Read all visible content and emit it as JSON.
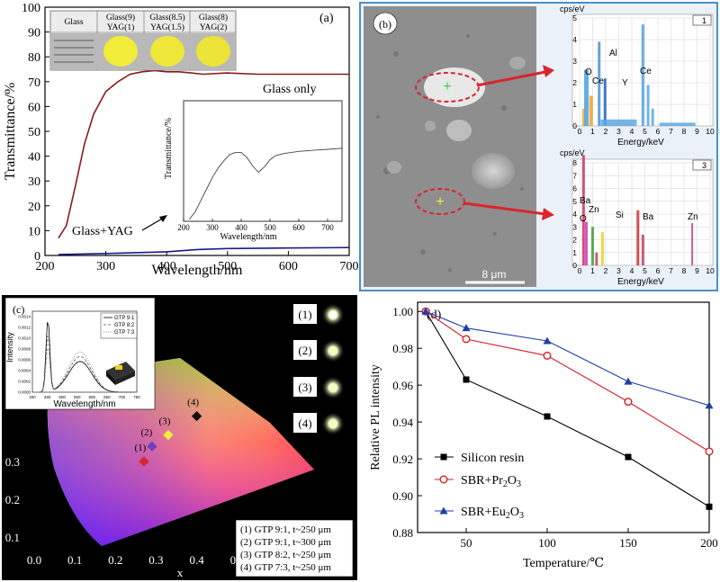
{
  "chart_data": [
    {
      "panel": "(a)",
      "type": "line",
      "xlabel": "Wavelength/nm",
      "ylabel": "Transmittance/%",
      "xlim": [
        200,
        700
      ],
      "ylim": [
        0,
        100
      ],
      "xticks": [
        200,
        300,
        400,
        500,
        600,
        700
      ],
      "yticks": [
        0,
        10,
        20,
        30,
        40,
        50,
        60,
        70,
        80,
        90,
        100
      ],
      "series": [
        {
          "name": "Glass only",
          "color": "#8b1a1a",
          "x": [
            222,
            235,
            250,
            265,
            280,
            300,
            320,
            340,
            360,
            380,
            400,
            420,
            440,
            460,
            500,
            550,
            600,
            650,
            700
          ],
          "y": [
            7,
            12,
            28,
            45,
            57,
            66,
            70,
            73,
            74,
            74.5,
            74,
            74,
            73.5,
            73,
            73.5,
            73,
            73,
            73,
            73
          ]
        },
        {
          "name": "Glass+YAG",
          "color": "#1a1a8b",
          "x": [
            222,
            300,
            400,
            450,
            500,
            600,
            700
          ],
          "y": [
            0.4,
            0.8,
            1.5,
            2.4,
            2.8,
            3.0,
            3.2
          ]
        }
      ],
      "table": {
        "headers": [
          "Glass",
          "Glass(9)\nYAG(1)",
          "Glass(8.5)\nYAG(1.5)",
          "Glass(8)\nYAG(2)"
        ]
      },
      "inset": {
        "xlabel": "Wavelength/nm",
        "ylabel": "Transmittance/%",
        "xlim": [
          200,
          750
        ],
        "xticks": [
          200,
          300,
          400,
          500,
          600,
          700
        ],
        "x": [
          220,
          240,
          260,
          280,
          300,
          320,
          340,
          360,
          380,
          400,
          420,
          440,
          460,
          480,
          500,
          520,
          550,
          600,
          650,
          700,
          750
        ],
        "y": [
          0.02,
          0.09,
          0.2,
          0.31,
          0.42,
          0.51,
          0.58,
          0.64,
          0.66,
          0.66,
          0.61,
          0.53,
          0.47,
          0.52,
          0.59,
          0.63,
          0.65,
          0.67,
          0.68,
          0.69,
          0.7
        ]
      }
    },
    {
      "panel": "(b)",
      "type": "scatter",
      "scale_bar": "8 μm",
      "spectra": [
        {
          "id": "1",
          "ylabel": "cps/eV",
          "xlabel": "Energy/keV",
          "yticks": [
            0,
            1,
            2,
            3,
            4,
            5
          ],
          "xticks": [
            0,
            1,
            2,
            3,
            4,
            5,
            6,
            7,
            8,
            9,
            10
          ],
          "labels": [
            "O",
            "Ce",
            "Al",
            "Y",
            "Ce"
          ]
        },
        {
          "id": "3",
          "ylabel": "cps/eV",
          "xlabel": "Energy/keV",
          "yticks": [
            0,
            1,
            2,
            3,
            4,
            5,
            6,
            7,
            8
          ],
          "xticks": [
            0,
            1,
            2,
            3,
            4,
            5,
            6,
            7,
            8,
            9,
            10
          ],
          "labels": [
            "Ba",
            "Zn",
            "Si",
            "Ba",
            "Zn",
            "O"
          ]
        }
      ]
    },
    {
      "panel": "(c)",
      "type": "scatter",
      "xlabel": "x",
      "xlim": [
        0,
        0.7
      ],
      "xticks": [
        0.0,
        0.1,
        0.2,
        0.3,
        0.4,
        0.5,
        0.6,
        0.7
      ],
      "yticks": [
        0.1,
        0.2,
        0.3
      ],
      "points": [
        {
          "label": "(1)",
          "x": 0.27,
          "y": 0.3,
          "color": "#d9262c"
        },
        {
          "label": "(2)",
          "x": 0.29,
          "y": 0.34,
          "color": "#6d3fbf"
        },
        {
          "label": "(3)",
          "x": 0.33,
          "y": 0.37,
          "color": "#f0f03c"
        },
        {
          "label": "(4)",
          "x": 0.4,
          "y": 0.42,
          "color": "#111111"
        }
      ],
      "legend": [
        "(1) GTP 9:1, t~250 μm",
        "(2) GTP 9:1, t~300 μm",
        "(3) GTP 8:2, t~250 μm",
        "(4) GTP 7:3, t~250 μm"
      ],
      "photo_labels": [
        "(1)",
        "(2)",
        "(3)",
        "(4)"
      ],
      "inset": {
        "xlabel": "Wavelength/nm",
        "ylabel": "Intensity",
        "xticks": [
          400,
          450,
          500,
          550,
          600,
          650,
          700,
          750
        ],
        "yticks": [
          "0.0000",
          "0.0002",
          "0.0004",
          "0.0006",
          "0.0008",
          "0.0010",
          "0.0012",
          "0.0014"
        ],
        "legend": [
          "GTP 9:1",
          "GTP 8:2",
          "GTP 7:3"
        ]
      }
    },
    {
      "panel": "(d)",
      "type": "line",
      "xlabel": "Temperature/℃",
      "ylabel": "Relative PL intensity",
      "xlim": [
        20,
        200
      ],
      "ylim": [
        0.88,
        1.005
      ],
      "xticks": [
        50,
        100,
        150,
        200
      ],
      "yticks": [
        "0.88",
        "0.90",
        "0.92",
        "0.94",
        "0.96",
        "0.98",
        "1.00"
      ],
      "series": [
        {
          "name": "Silicon resin",
          "color": "#000000",
          "marker": "square",
          "x": [
            25,
            50,
            100,
            150,
            200
          ],
          "y": [
            1.0,
            0.963,
            0.943,
            0.921,
            0.894
          ]
        },
        {
          "name": "SBR+Pr2O3",
          "color": "#d61f26",
          "marker": "circle",
          "x": [
            25,
            50,
            100,
            150,
            200
          ],
          "y": [
            1.0,
            0.985,
            0.976,
            0.951,
            0.924
          ]
        },
        {
          "name": "SBR+Eu2O3",
          "color": "#1f3fa8",
          "marker": "triangle",
          "x": [
            25,
            50,
            100,
            150,
            200
          ],
          "y": [
            1.0,
            0.991,
            0.984,
            0.962,
            0.949
          ]
        }
      ]
    }
  ]
}
